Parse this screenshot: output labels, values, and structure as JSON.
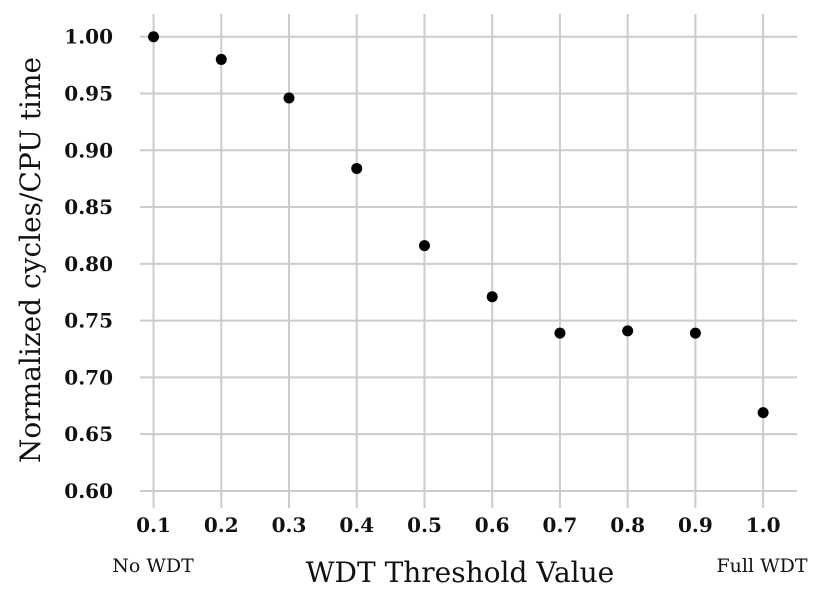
{
  "chart_data": {
    "type": "scatter",
    "title": "",
    "xlabel": "WDT Threshold Value",
    "ylabel": "Normalized cycles/CPU time",
    "x": [
      0.1,
      0.2,
      0.3,
      0.4,
      0.5,
      0.6,
      0.7,
      0.8,
      0.9,
      1.0
    ],
    "y": [
      1.0,
      0.98,
      0.946,
      0.884,
      0.816,
      0.771,
      0.739,
      0.741,
      0.739,
      0.669
    ],
    "xticks": [
      "0.1",
      "0.2",
      "0.3",
      "0.4",
      "0.5",
      "0.6",
      "0.7",
      "0.8",
      "0.9",
      "1.0"
    ],
    "yticks": [
      "0.60",
      "0.65",
      "0.70",
      "0.75",
      "0.80",
      "0.85",
      "0.90",
      "0.95",
      "1.00"
    ],
    "xlim": [
      0.08,
      1.05
    ],
    "ylim": [
      0.585,
      1.02
    ],
    "grid": true,
    "point_color": "#000000",
    "grid_color": "#cccccc",
    "annotations": {
      "left": "No WDT",
      "right": "Full WDT"
    }
  }
}
